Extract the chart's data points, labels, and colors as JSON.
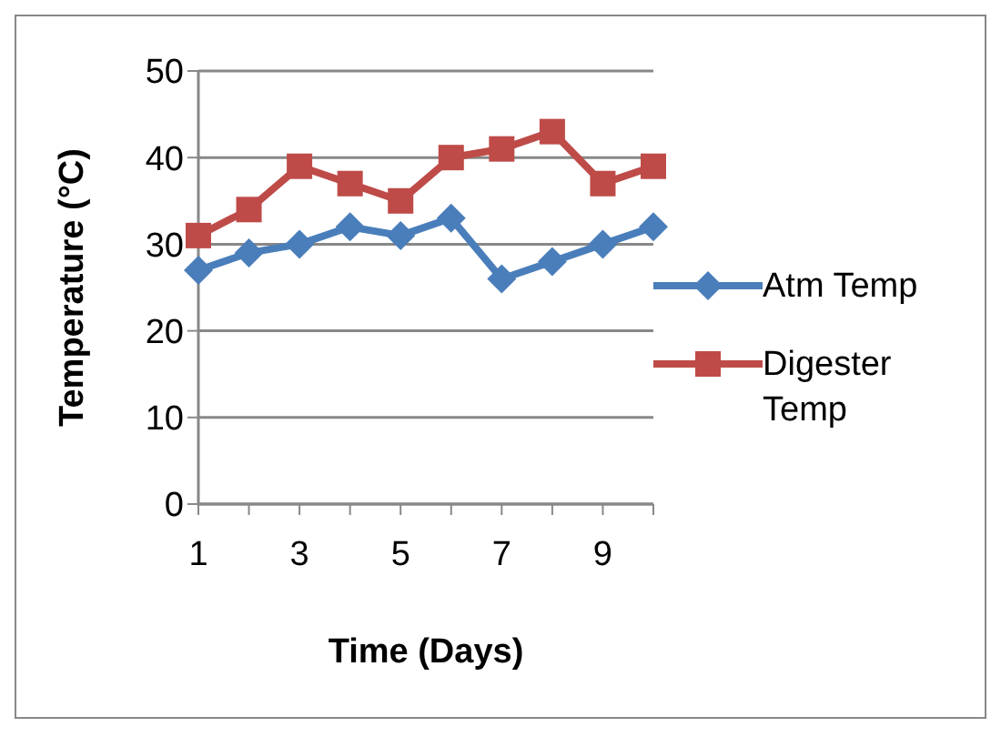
{
  "chart_data": {
    "type": "line",
    "xlabel": "Time (Days)",
    "ylabel": "Temperature (°C)",
    "categories": [
      "1",
      null,
      "3",
      null,
      "5",
      null,
      "7",
      null,
      "9",
      null
    ],
    "series": [
      {
        "name": "Atm Temp",
        "color": "#4a7ebb",
        "marker": "diamond",
        "values": [
          27,
          29,
          30,
          32,
          31,
          33,
          26,
          28,
          30,
          32
        ]
      },
      {
        "name": "Digester Temp",
        "color": "#be4b48",
        "marker": "square",
        "values": [
          31,
          34,
          39,
          37,
          35,
          40,
          41,
          43,
          37,
          39
        ]
      }
    ],
    "ylim": [
      0,
      50
    ],
    "yticks": [
      0,
      10,
      20,
      30,
      40,
      50
    ],
    "grid": "y",
    "legend": "right"
  }
}
